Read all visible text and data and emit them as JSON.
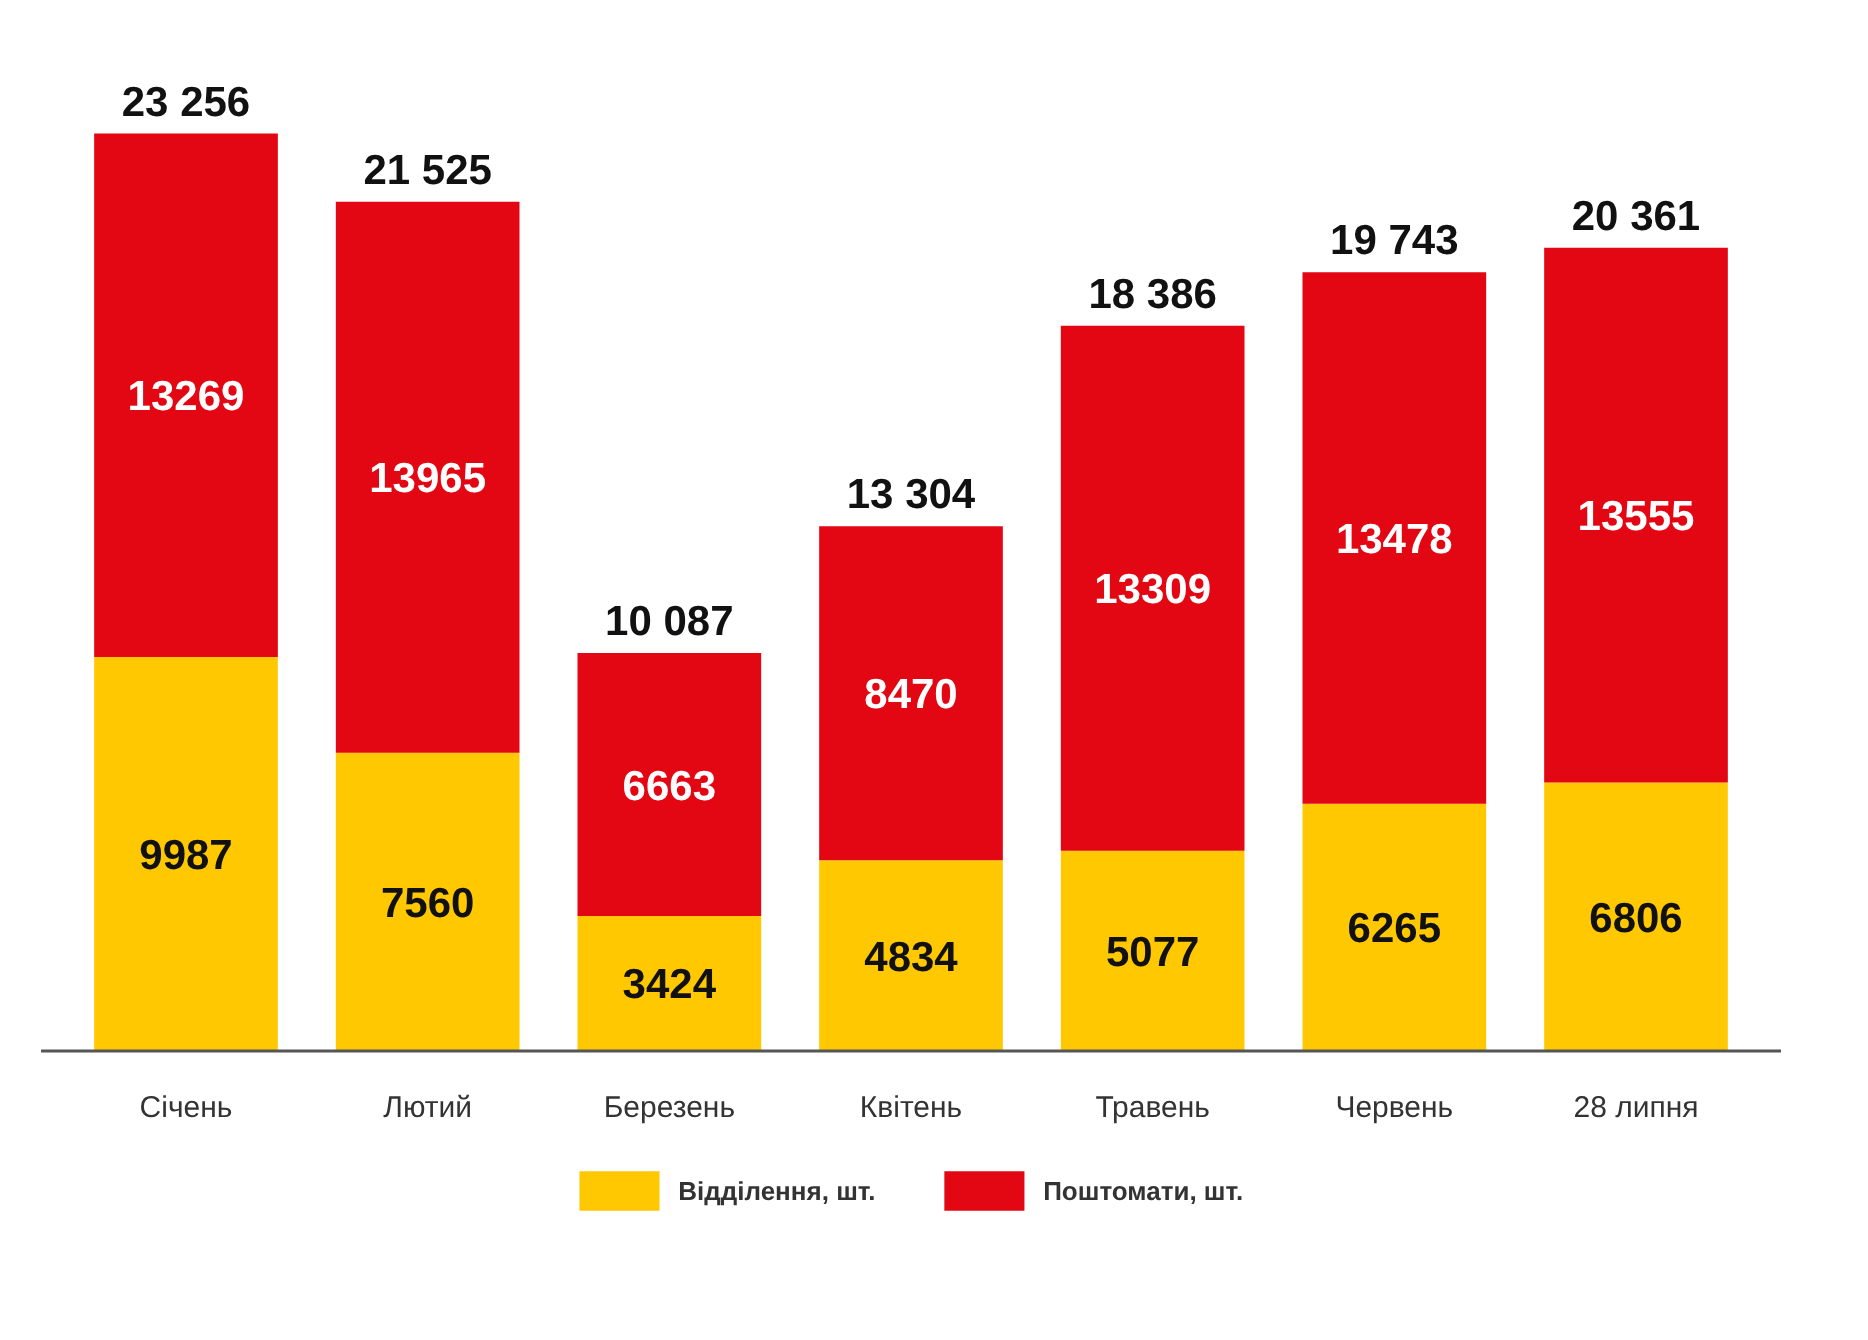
{
  "chart_data": {
    "type": "bar",
    "stacked": true,
    "categories": [
      "Січень",
      "Лютий",
      "Березень",
      "Квітень",
      "Травень",
      "Червень",
      "28 липня"
    ],
    "series": [
      {
        "name": "Відділення, шт.",
        "color": "#ffc800",
        "values": [
          9987,
          7560,
          3424,
          4834,
          5077,
          6265,
          6806
        ]
      },
      {
        "name": "Поштомати, шт.",
        "color": "#e30613",
        "values": [
          13269,
          13965,
          6663,
          8470,
          13309,
          13478,
          13555
        ]
      }
    ],
    "data_labels": true,
    "totals": [
      "23 256",
      "21 525",
      "10 087",
      "13 304",
      "18 386",
      "19 743",
      "20 361"
    ],
    "grid": false,
    "legend": "bottom",
    "tick_labels": "x"
  }
}
